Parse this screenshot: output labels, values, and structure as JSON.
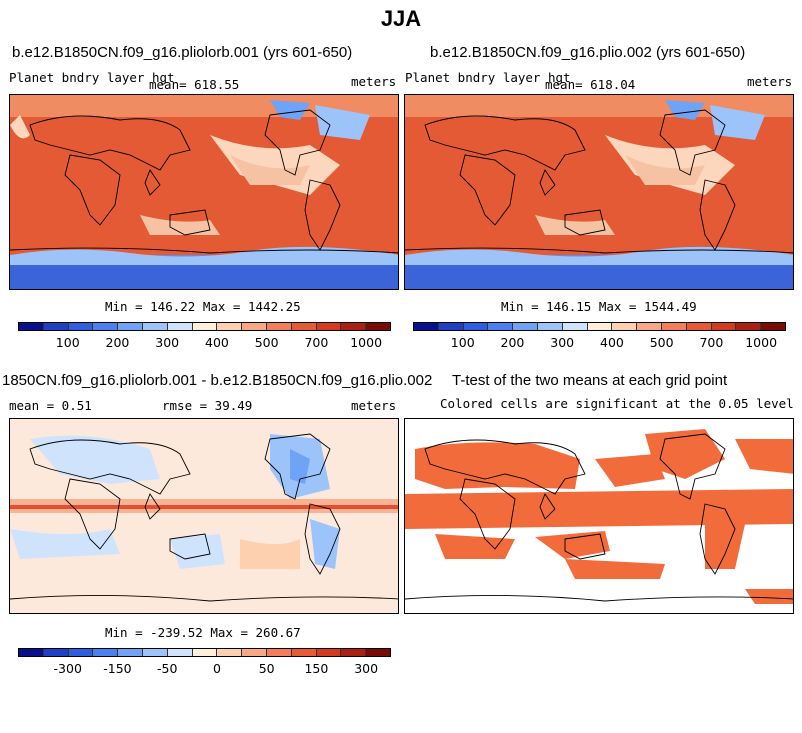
{
  "figure": {
    "title": "JJA",
    "panels": [
      {
        "title": "b.e12.B1850CN.f09_g16.pliolorb.001 (yrs 601-650)",
        "left": "Planet bndry layer hgt",
        "center": "mean= 618.55",
        "right": "meters",
        "stats": "Min = 146.22 Max = 1442.25"
      },
      {
        "title": "b.e12.B1850CN.f09_g16.plio.002 (yrs 601-650)",
        "left": "Planet bndry layer hgt",
        "center": "mean= 618.04",
        "right": "meters",
        "stats": "Min = 146.15 Max = 1544.49"
      },
      {
        "title": "1850CN.f09_g16.pliolorb.001 - b.e12.B1850CN.f09_g16.plio.002",
        "left": "mean =   0.51",
        "center": "rmse =  39.49",
        "right": "meters",
        "stats": "Min = -239.52 Max = 260.67"
      },
      {
        "title": "T-test of the two means at each grid point",
        "left": "Colored cells are significant at the 0.05 level",
        "center": "",
        "right": "",
        "stats": ""
      }
    ],
    "colorbar_abs": {
      "ticks": [
        "100",
        "200",
        "300",
        "400",
        "500",
        "700",
        "1000"
      ],
      "colors": [
        "#08108c",
        "#1f3fc4",
        "#2f5fe0",
        "#4a80f0",
        "#6fa3f6",
        "#9cc4fa",
        "#cfe3fc",
        "#fff0dc",
        "#fdd0b0",
        "#f9a884",
        "#f27f5a",
        "#e85a36",
        "#d43a1e",
        "#ab2010",
        "#7a0a06"
      ]
    },
    "colorbar_diff": {
      "ticks": [
        "-300",
        "-150",
        "-50",
        "0",
        "50",
        "150",
        "300"
      ],
      "colors": [
        "#08108c",
        "#1f3fc4",
        "#2f5fe0",
        "#4a80f0",
        "#6fa3f6",
        "#9cc4fa",
        "#cfe3fc",
        "#fff0dc",
        "#fdd0b0",
        "#f9a884",
        "#f27f5a",
        "#e85a36",
        "#d43a1e",
        "#ab2010",
        "#7a0a06"
      ]
    },
    "significance_color": "#f26b3a"
  }
}
